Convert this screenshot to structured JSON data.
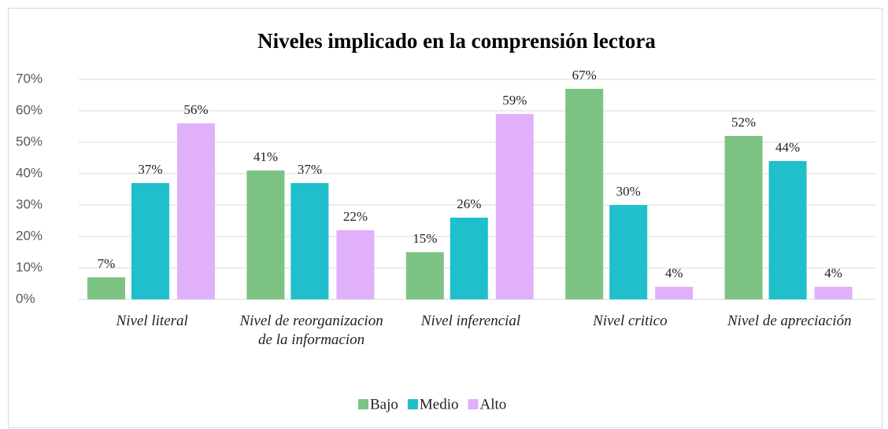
{
  "chart_data": {
    "type": "bar",
    "title": "Niveles implicado en la comprensión lectora",
    "categories": [
      "Nivel literal",
      "Nivel de reorganizacion de la informacion",
      "Nivel inferencial",
      "Nivel critico",
      "Nivel de apreciación"
    ],
    "series": [
      {
        "name": "Bajo",
        "color": "#7dc383",
        "values": [
          7,
          41,
          15,
          67,
          52
        ],
        "value_labels": [
          "7%",
          "41%",
          "15%",
          "67%",
          "52%"
        ]
      },
      {
        "name": "Medio",
        "color": "#1fbfcc",
        "values": [
          37,
          37,
          26,
          30,
          44
        ],
        "value_labels": [
          "37%",
          "37%",
          "26%",
          "30%",
          "44%"
        ]
      },
      {
        "name": "Alto",
        "color": "#e0b0fa",
        "values": [
          56,
          22,
          59,
          4,
          4
        ],
        "value_labels": [
          "56%",
          "22%",
          "59%",
          "4%",
          "4%"
        ]
      }
    ],
    "ylim": [
      0,
      70
    ],
    "yticks": [
      {
        "value": 0,
        "label": "0%"
      },
      {
        "value": 10,
        "label": "10%"
      },
      {
        "value": 20,
        "label": "20%"
      },
      {
        "value": 30,
        "label": "30%"
      },
      {
        "value": 40,
        "label": "40%"
      },
      {
        "value": 50,
        "label": "50%"
      },
      {
        "value": 60,
        "label": "60%"
      },
      {
        "value": 70,
        "label": "70%"
      }
    ],
    "grid": true,
    "legend": "bottom"
  }
}
